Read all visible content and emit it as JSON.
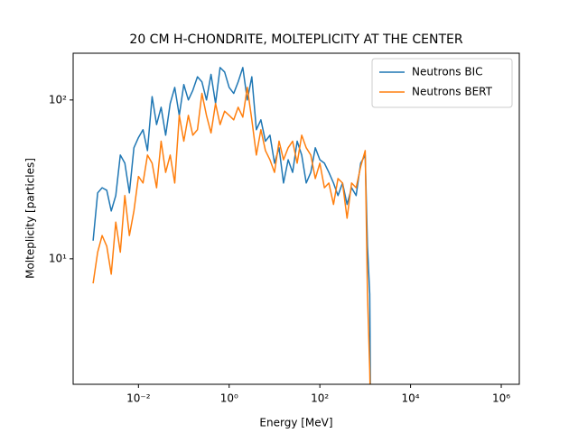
{
  "chart_data": {
    "type": "line",
    "title": "20 CM H-CHONDRITE, MOLTEPLICITY AT THE CENTER",
    "xlabel": "Energy [MeV]",
    "ylabel": "Molteplicity [particles]",
    "xscale": "log",
    "yscale": "log",
    "legend": "upper right",
    "x": [
      0.001,
      0.00126,
      0.00158,
      0.002,
      0.00251,
      0.00316,
      0.00398,
      0.00501,
      0.00631,
      0.00794,
      0.01,
      0.0126,
      0.0158,
      0.02,
      0.0251,
      0.0316,
      0.0398,
      0.0501,
      0.0631,
      0.0794,
      0.1,
      0.126,
      0.158,
      0.2,
      0.251,
      0.316,
      0.398,
      0.501,
      0.631,
      0.794,
      1,
      1.26,
      1.58,
      2,
      2.51,
      3.16,
      3.98,
      5.01,
      6.31,
      7.94,
      10,
      12.6,
      15.8,
      20,
      25.1,
      31.6,
      39.8,
      50.1,
      63.1,
      79.4,
      100,
      126,
      158,
      200,
      251,
      316,
      398,
      501,
      631,
      794,
      1000,
      1122,
      1259,
      1318
    ],
    "series": [
      {
        "name": "Neutrons BIC",
        "color": "#1f77b4",
        "values": [
          13,
          26,
          28,
          27,
          20,
          25,
          45,
          40,
          26,
          50,
          58,
          65,
          48,
          105,
          70,
          90,
          60,
          95,
          120,
          80,
          125,
          100,
          115,
          140,
          130,
          100,
          145,
          95,
          160,
          150,
          120,
          110,
          130,
          160,
          100,
          140,
          65,
          75,
          55,
          60,
          40,
          50,
          30,
          42,
          35,
          55,
          45,
          30,
          35,
          50,
          42,
          40,
          35,
          30,
          25,
          30,
          22,
          28,
          25,
          40,
          45,
          12,
          6,
          1
        ]
      },
      {
        "name": "Neutrons BERT",
        "color": "#ff7f0e",
        "values": [
          7,
          11,
          14,
          12,
          8,
          17,
          11,
          25,
          14,
          20,
          33,
          30,
          45,
          40,
          28,
          55,
          35,
          45,
          30,
          80,
          55,
          80,
          60,
          65,
          110,
          80,
          62,
          95,
          70,
          85,
          80,
          75,
          90,
          78,
          120,
          75,
          45,
          65,
          48,
          42,
          35,
          55,
          42,
          50,
          55,
          40,
          60,
          50,
          45,
          32,
          40,
          28,
          30,
          22,
          32,
          30,
          18,
          30,
          28,
          38,
          48,
          6,
          2,
          1
        ]
      }
    ],
    "xlim": [
      0.000363,
      2500000
    ],
    "ylim": [
      1.62,
      197
    ],
    "xticks": [
      {
        "value": 0.01,
        "label": "10⁻²"
      },
      {
        "value": 1,
        "label": "10⁰"
      },
      {
        "value": 100,
        "label": "10²"
      },
      {
        "value": 10000,
        "label": "10⁴"
      },
      {
        "value": 1000000,
        "label": "10⁶"
      }
    ],
    "yticks": [
      {
        "value": 10,
        "label": "10¹"
      },
      {
        "value": 100,
        "label": "10²"
      }
    ]
  }
}
